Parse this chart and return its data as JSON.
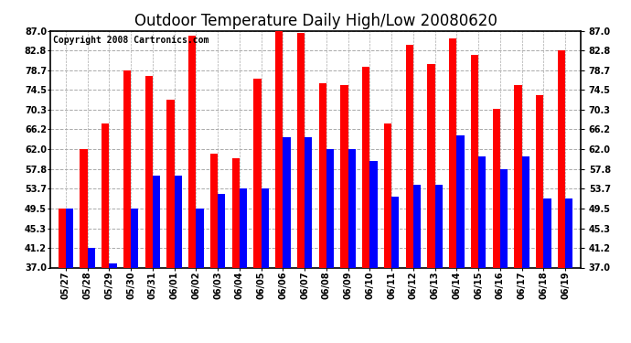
{
  "title": "Outdoor Temperature Daily High/Low 20080620",
  "copyright": "Copyright 2008 Cartronics.com",
  "dates": [
    "05/27",
    "05/28",
    "05/29",
    "05/30",
    "05/31",
    "06/01",
    "06/02",
    "06/03",
    "06/04",
    "06/05",
    "06/06",
    "06/07",
    "06/08",
    "06/09",
    "06/10",
    "06/11",
    "06/12",
    "06/13",
    "06/14",
    "06/15",
    "06/16",
    "06/17",
    "06/18",
    "06/19"
  ],
  "highs": [
    49.5,
    62.0,
    67.5,
    78.7,
    77.5,
    72.5,
    86.0,
    61.0,
    60.0,
    77.0,
    87.0,
    86.5,
    76.0,
    75.5,
    79.5,
    67.5,
    84.0,
    80.0,
    85.5,
    82.0,
    70.5,
    75.5,
    73.5,
    82.8
  ],
  "lows": [
    49.5,
    41.2,
    37.9,
    49.5,
    56.5,
    56.5,
    49.5,
    52.5,
    53.7,
    53.7,
    64.5,
    64.5,
    62.0,
    62.0,
    59.5,
    52.0,
    54.5,
    54.5,
    65.0,
    60.5,
    57.8,
    60.5,
    51.5,
    51.5
  ],
  "high_color": "#ff0000",
  "low_color": "#0000ff",
  "bg_color": "#ffffff",
  "grid_color": "#aaaaaa",
  "ymin": 37.0,
  "ymax": 87.0,
  "yticks": [
    37.0,
    41.2,
    45.3,
    49.5,
    53.7,
    57.8,
    62.0,
    66.2,
    70.3,
    74.5,
    78.7,
    82.8,
    87.0
  ],
  "title_fontsize": 12,
  "copyright_fontsize": 7,
  "bar_width": 0.35
}
